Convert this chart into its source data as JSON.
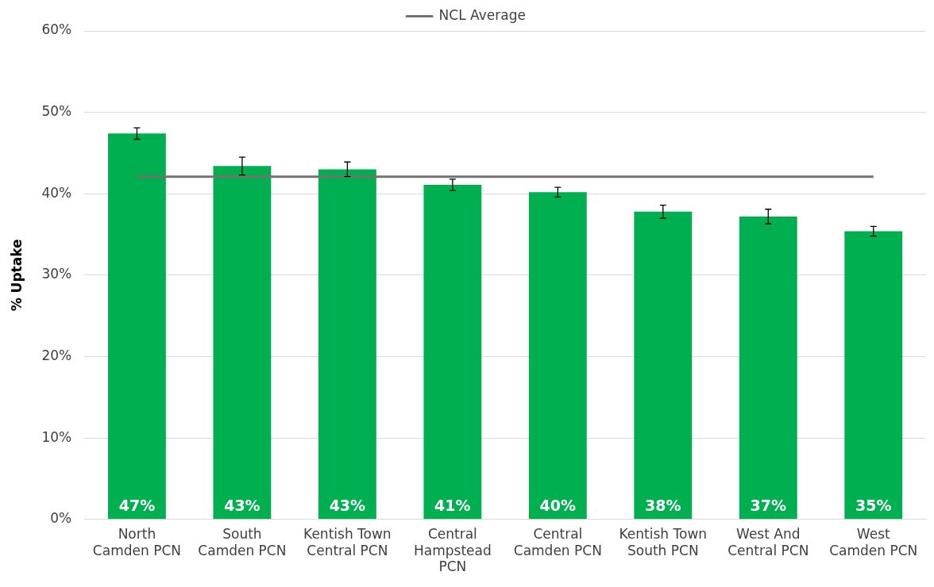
{
  "chart_data": {
    "type": "bar",
    "ylabel": "% Uptake",
    "categories": [
      "North Camden PCN",
      "South Camden PCN",
      "Kentish Town Central PCN",
      "Central Hampstead PCN",
      "Central Camden PCN",
      "Kentish Town South PCN",
      "West And Central PCN",
      "West Camden PCN"
    ],
    "series": [
      {
        "color": "#00b050",
        "values": [
          47.4,
          43.4,
          43.0,
          41.1,
          40.2,
          37.8,
          37.2,
          35.4
        ],
        "errors": [
          0.7,
          1.1,
          0.9,
          0.7,
          0.6,
          0.8,
          0.9,
          0.6
        ],
        "value_labels": [
          "47%",
          "43%",
          "43%",
          "41%",
          "40%",
          "38%",
          "37%",
          "35%"
        ]
      },
      {
        "type": "line",
        "name": "NCL Average",
        "color": "#767171",
        "values": [
          42.1,
          42.1,
          42.1,
          42.1,
          42.1,
          42.1,
          42.1,
          42.1
        ]
      }
    ],
    "ylim": [
      0,
      60
    ],
    "yticks": [
      {
        "value": 0,
        "label": "0%"
      },
      {
        "value": 10,
        "label": "10%"
      },
      {
        "value": 20,
        "label": "20%"
      },
      {
        "value": 30,
        "label": "30%"
      },
      {
        "value": 40,
        "label": "40%"
      },
      {
        "value": 50,
        "label": "50%"
      },
      {
        "value": 60,
        "label": "60%"
      }
    ],
    "grid": "y",
    "legend": "top",
    "marker": "none"
  }
}
